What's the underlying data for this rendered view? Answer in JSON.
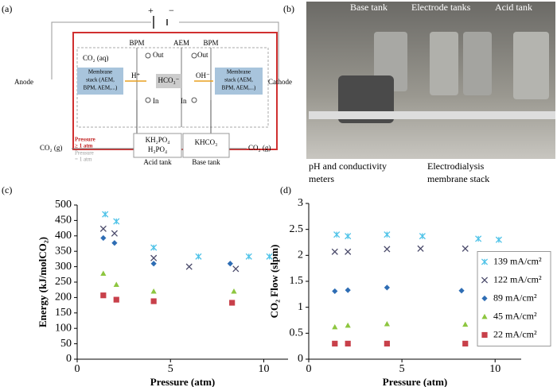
{
  "diagram": {
    "panel": "(a)",
    "plus": "+",
    "minus": "−",
    "membranes": [
      "BPM",
      "AEM",
      "BPM"
    ],
    "co2_aq": "CO₂ (aq)",
    "out": [
      "Out",
      "Out"
    ],
    "in": [
      "In",
      "In"
    ],
    "stack_left": [
      "Membrane",
      "stack (AEM,",
      "BPM, AEM,...)"
    ],
    "stack_right": [
      "Membrane",
      "stack (AEM,",
      "BPM, AEM,...)"
    ],
    "ions": [
      "H⁺",
      "HCO₃⁻",
      "OH⁻"
    ],
    "anode": "Anode",
    "cathode": "Cathode",
    "pressure_high": [
      "Pressure",
      "≥ 1 atm"
    ],
    "pressure_low": [
      "Pressure",
      "= 1 atm"
    ],
    "acid_contents": [
      "KH₂PO₄",
      "H₃PO₄"
    ],
    "base_contents": "KHCO₃",
    "co2_gas": [
      "CO₂ (g)",
      "CO₂ (g)"
    ],
    "acid_tank": "Acid tank",
    "base_tank": "Base tank"
  },
  "photo": {
    "panel": "(b)",
    "base_tank": "Base tank",
    "electrode_tanks": "Electrode tanks",
    "acid_tank": "Acid tank",
    "meters": [
      "pH and conductivity",
      "meters"
    ],
    "stack": [
      "Electrodialysis",
      "membrane stack"
    ]
  },
  "chart_data": [
    {
      "type": "scatter",
      "panel": "(c)",
      "xlabel": "Pressure (atm)",
      "ylabel": "Energy (kJ/molCO₂)",
      "xlim": [
        0,
        11.3
      ],
      "ylim": [
        0,
        500
      ],
      "xticks": [
        0,
        5,
        10
      ],
      "yticks": [
        0,
        50,
        100,
        150,
        200,
        250,
        300,
        350,
        400,
        450,
        500
      ],
      "series": [
        {
          "color": "#4fc3e8",
          "marker": "asterisk",
          "x": [
            1.5,
            2.1,
            4.1,
            6.5,
            9.2,
            10.3
          ],
          "values": [
            470,
            447,
            362,
            333,
            333,
            333
          ]
        },
        {
          "color": "#4a4a6a",
          "marker": "x",
          "x": [
            1.4,
            2.0,
            4.1,
            6.0,
            8.5
          ],
          "values": [
            423,
            408,
            328,
            300,
            293
          ]
        },
        {
          "color": "#2e6db4",
          "marker": "diamond",
          "x": [
            1.4,
            2.0,
            4.1,
            8.2
          ],
          "values": [
            393,
            377,
            310,
            310
          ]
        },
        {
          "color": "#8dc63f",
          "marker": "triangle",
          "x": [
            1.4,
            2.1,
            4.1,
            8.4
          ],
          "values": [
            278,
            242,
            220,
            220
          ]
        },
        {
          "color": "#c8404a",
          "marker": "square",
          "x": [
            1.4,
            2.1,
            4.1,
            8.3
          ],
          "values": [
            207,
            193,
            188,
            183
          ]
        }
      ]
    },
    {
      "type": "scatter",
      "panel": "(d)",
      "xlabel": "Pressure (atm)",
      "ylabel": "CO₂ Flow (slpm)",
      "legend": "right",
      "xlim": [
        0,
        11.4
      ],
      "ylim": [
        0,
        3
      ],
      "xticks": [
        0,
        5,
        10
      ],
      "yticks": [
        0,
        0.5,
        1,
        1.5,
        2,
        2.5,
        3
      ],
      "series": [
        {
          "name": "139 mA/cm²",
          "color": "#4fc3e8",
          "marker": "asterisk",
          "x": [
            1.5,
            2.1,
            4.2,
            6.1,
            9.1,
            10.2
          ],
          "values": [
            2.4,
            2.37,
            2.4,
            2.37,
            2.32,
            2.3
          ]
        },
        {
          "name": "122 mA/cm²",
          "color": "#4a4a6a",
          "marker": "x",
          "x": [
            1.4,
            2.1,
            4.2,
            6.0,
            8.4
          ],
          "values": [
            2.07,
            2.07,
            2.12,
            2.13,
            2.13
          ]
        },
        {
          "name": "89 mA/cm²",
          "color": "#2e6db4",
          "marker": "diamond",
          "x": [
            1.4,
            2.1,
            4.2,
            8.2
          ],
          "values": [
            1.31,
            1.33,
            1.38,
            1.32
          ]
        },
        {
          "name": "45 mA/cm²",
          "color": "#8dc63f",
          "marker": "triangle",
          "x": [
            1.4,
            2.1,
            4.2,
            8.4
          ],
          "values": [
            0.62,
            0.65,
            0.68,
            0.67
          ]
        },
        {
          "name": "22 mA/cm²",
          "color": "#c8404a",
          "marker": "square",
          "x": [
            1.4,
            2.1,
            4.2,
            8.4
          ],
          "values": [
            0.3,
            0.3,
            0.3,
            0.3
          ]
        }
      ]
    }
  ]
}
